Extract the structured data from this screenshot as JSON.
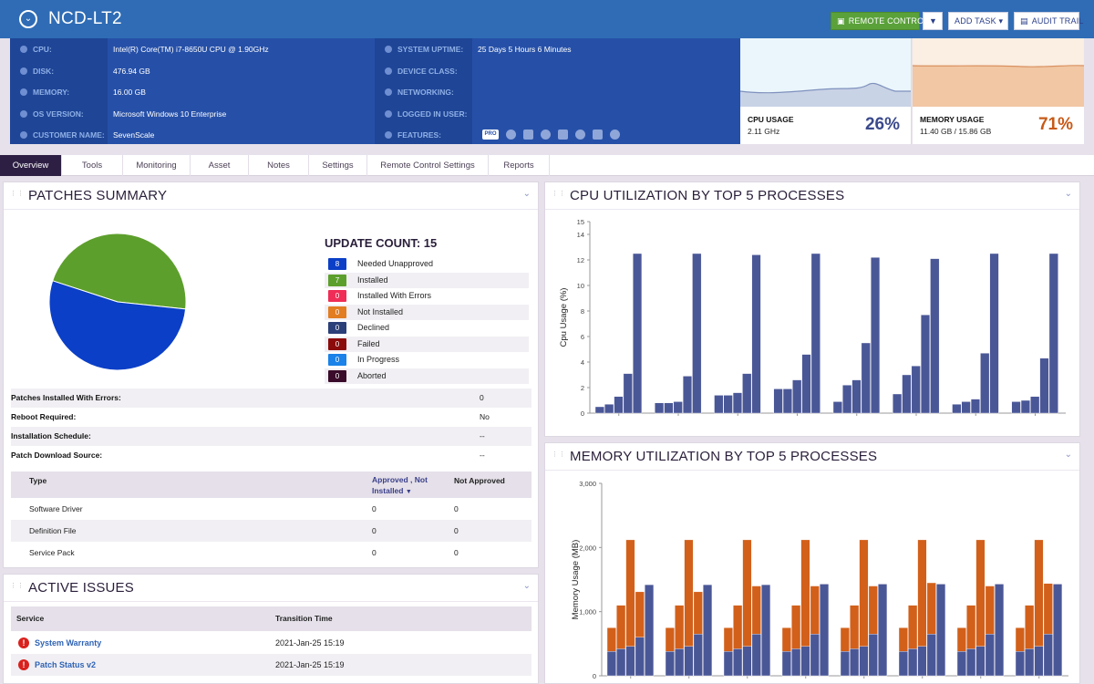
{
  "header": {
    "device_name": "NCD-LT2",
    "remote_control_label": "REMOTE CONTROL",
    "add_task_label": "ADD TASK",
    "audit_trail_label": "AUDIT TRAIL"
  },
  "info": {
    "left": [
      {
        "label": "CPU:",
        "value": "Intel(R) Core(TM) i7-8650U CPU @ 1.90GHz"
      },
      {
        "label": "DISK:",
        "value": "476.94 GB"
      },
      {
        "label": "MEMORY:",
        "value": "16.00 GB"
      },
      {
        "label": "OS VERSION:",
        "value": "Microsoft Windows 10 Enterprise"
      },
      {
        "label": "CUSTOMER NAME:",
        "value": "SevenScale"
      }
    ],
    "right": [
      {
        "label": "SYSTEM UPTIME:",
        "value": "25 Days 5 Hours 6 Minutes"
      },
      {
        "label": "DEVICE CLASS:",
        "value": ""
      },
      {
        "label": "NETWORKING:",
        "value": ""
      },
      {
        "label": "LOGGED IN USER:",
        "value": ""
      },
      {
        "label": "FEATURES:",
        "value": ""
      }
    ],
    "features": [
      {
        "icon": "pro-badge-icon",
        "text": "PRO"
      },
      {
        "icon": "shield-icon"
      },
      {
        "icon": "shield-check-icon"
      },
      {
        "icon": "medkit-icon"
      },
      {
        "icon": "disc-icon"
      },
      {
        "icon": "play-icon"
      },
      {
        "icon": "tools-icon"
      },
      {
        "icon": "network-icon"
      }
    ]
  },
  "cpu_usage": {
    "title": "CPU USAGE",
    "sub": "2.11 GHz",
    "percent": "26%",
    "color": "#3b4a8c"
  },
  "memory_usage": {
    "title": "MEMORY USAGE",
    "sub": "11.40 GB / 15.86 GB",
    "percent": "71%",
    "color": "#c75a17"
  },
  "tabs": [
    "Overview",
    "Tools",
    "Monitoring",
    "Asset",
    "Notes",
    "Settings",
    "Remote Control Settings",
    "Reports"
  ],
  "patches": {
    "title": "PATCHES SUMMARY",
    "update_count_label": "UPDATE COUNT: 15",
    "legend": [
      {
        "count": "8",
        "label": "Needed Unapproved",
        "color": "#0b3fc7"
      },
      {
        "count": "7",
        "label": "Installed",
        "color": "#5d9f2c"
      },
      {
        "count": "0",
        "label": "Installed With Errors",
        "color": "#ef2d56"
      },
      {
        "count": "0",
        "label": "Not Installed",
        "color": "#e27d22"
      },
      {
        "count": "0",
        "label": "Declined",
        "color": "#2b3f78"
      },
      {
        "count": "0",
        "label": "Failed",
        "color": "#8b0b0b"
      },
      {
        "count": "0",
        "label": "In Progress",
        "color": "#1a82e8"
      },
      {
        "count": "0",
        "label": "Aborted",
        "color": "#3a0b2a"
      }
    ],
    "pie": [
      {
        "label": "Needed Unapproved",
        "value": 8,
        "color": "#0b3fc7"
      },
      {
        "label": "Installed",
        "value": 7,
        "color": "#5d9f2c"
      }
    ],
    "details": [
      {
        "key": "Patches Installed With Errors:",
        "value": "0"
      },
      {
        "key": "Reboot Required:",
        "value": "No"
      },
      {
        "key": "Installation Schedule:",
        "value": "--"
      },
      {
        "key": "Patch Download Source:",
        "value": "--"
      }
    ],
    "table": {
      "headers": [
        "Type",
        "Approved , Not Installed",
        "Not Approved"
      ],
      "rows": [
        {
          "type": "Software Driver",
          "approved": "0",
          "not_approved": "0"
        },
        {
          "type": "Definition File",
          "approved": "0",
          "not_approved": "0"
        },
        {
          "type": "Service Pack",
          "approved": "0",
          "not_approved": "0"
        }
      ]
    }
  },
  "issues": {
    "title": "ACTIVE ISSUES",
    "headers": [
      "Service",
      "Transition Time"
    ],
    "rows": [
      {
        "service": "System Warranty",
        "time": "2021-Jan-25 15:19"
      },
      {
        "service": "Patch Status v2",
        "time": "2021-Jan-25 15:19"
      }
    ]
  },
  "cpu_panel_title": "CPU UTILIZATION BY TOP 5 PROCESSES",
  "mem_panel_title": "MEMORY UTILIZATION BY TOP 5 PROCESSES",
  "chart_data": [
    {
      "type": "bar",
      "ylabel": "Cpu Usage (%)",
      "ylim": [
        0,
        15
      ],
      "yticks": [
        0,
        2,
        4,
        6,
        8,
        10,
        12,
        14,
        15
      ],
      "groups": 8,
      "bars_per_group": 5,
      "values": [
        [
          0.5,
          0.7,
          1.3,
          3.1,
          12.5
        ],
        [
          0.8,
          0.8,
          0.9,
          2.9,
          12.5
        ],
        [
          1.4,
          1.4,
          1.6,
          3.1,
          12.4
        ],
        [
          1.9,
          1.9,
          2.6,
          4.6,
          12.5
        ],
        [
          0.9,
          2.2,
          2.6,
          5.5,
          12.2
        ],
        [
          1.5,
          3.0,
          3.7,
          7.7,
          12.1
        ],
        [
          0.7,
          0.9,
          1.1,
          4.7,
          12.5
        ],
        [
          0.9,
          1.0,
          1.3,
          4.3,
          12.5
        ]
      ],
      "color": "#4a5797"
    },
    {
      "type": "bar",
      "ylabel": "Memory Usage (MB)",
      "ylim": [
        0,
        3000
      ],
      "yticks": [
        0,
        1000,
        2000,
        3000
      ],
      "ytick_labels": [
        "0",
        "1,000",
        "2,000",
        "3,000"
      ],
      "groups": 8,
      "bars_per_group": 5,
      "series": [
        {
          "values": [
            [
              750,
              1100,
              2120,
              1310,
              1420
            ],
            [
              750,
              1100,
              2120,
              1310,
              1420
            ],
            [
              750,
              1100,
              2120,
              1400,
              1420
            ],
            [
              750,
              1100,
              2120,
              1400,
              1430
            ],
            [
              750,
              1100,
              2120,
              1400,
              1430
            ],
            [
              750,
              1100,
              2120,
              1450,
              1430
            ],
            [
              750,
              1100,
              2120,
              1400,
              1430
            ],
            [
              750,
              1100,
              2120,
              1440,
              1430
            ]
          ],
          "color": "#d2601a"
        },
        {
          "values": [
            [
              380,
              420,
              460,
              600,
              1420
            ],
            [
              380,
              420,
              460,
              650,
              1420
            ],
            [
              380,
              420,
              460,
              650,
              1420
            ],
            [
              380,
              420,
              460,
              650,
              1430
            ],
            [
              380,
              420,
              460,
              650,
              1430
            ],
            [
              380,
              420,
              460,
              650,
              1430
            ],
            [
              380,
              420,
              460,
              650,
              1430
            ],
            [
              380,
              420,
              460,
              650,
              1430
            ]
          ],
          "color": "#4a5797"
        }
      ]
    }
  ]
}
